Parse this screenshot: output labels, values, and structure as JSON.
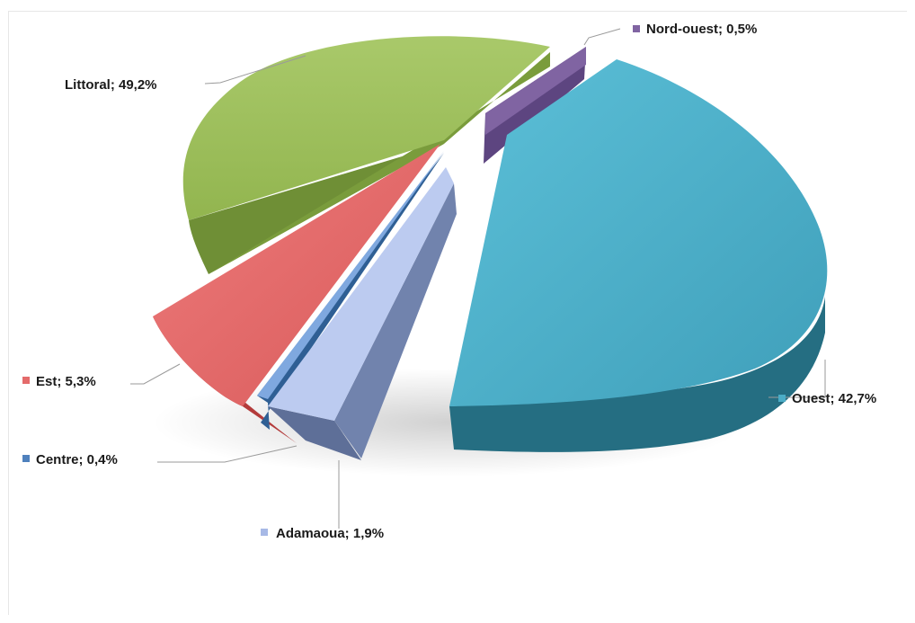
{
  "chart_data": {
    "type": "pie",
    "style": "3d-exploded",
    "legend": "none",
    "series": [
      {
        "slices": [
          {
            "label": "Littoral; 49,2%",
            "value": 49.2,
            "color": "#9bbb59"
          },
          {
            "label": "Nord-ouest; 0,5%",
            "value": 0.5,
            "color": "#8064a2"
          },
          {
            "label": "Ouest; 42,7%",
            "value": 42.7,
            "color": "#4bacc6"
          },
          {
            "label": "Adamaoua; 1,9%",
            "value": 1.9,
            "color": "#a7b9e6"
          },
          {
            "label": "Centre; 0,4%",
            "value": 0.4,
            "color": "#4f81bd"
          },
          {
            "label": "Est; 5,3%",
            "value": 5.3,
            "color": "#e46b6b"
          }
        ]
      }
    ]
  }
}
